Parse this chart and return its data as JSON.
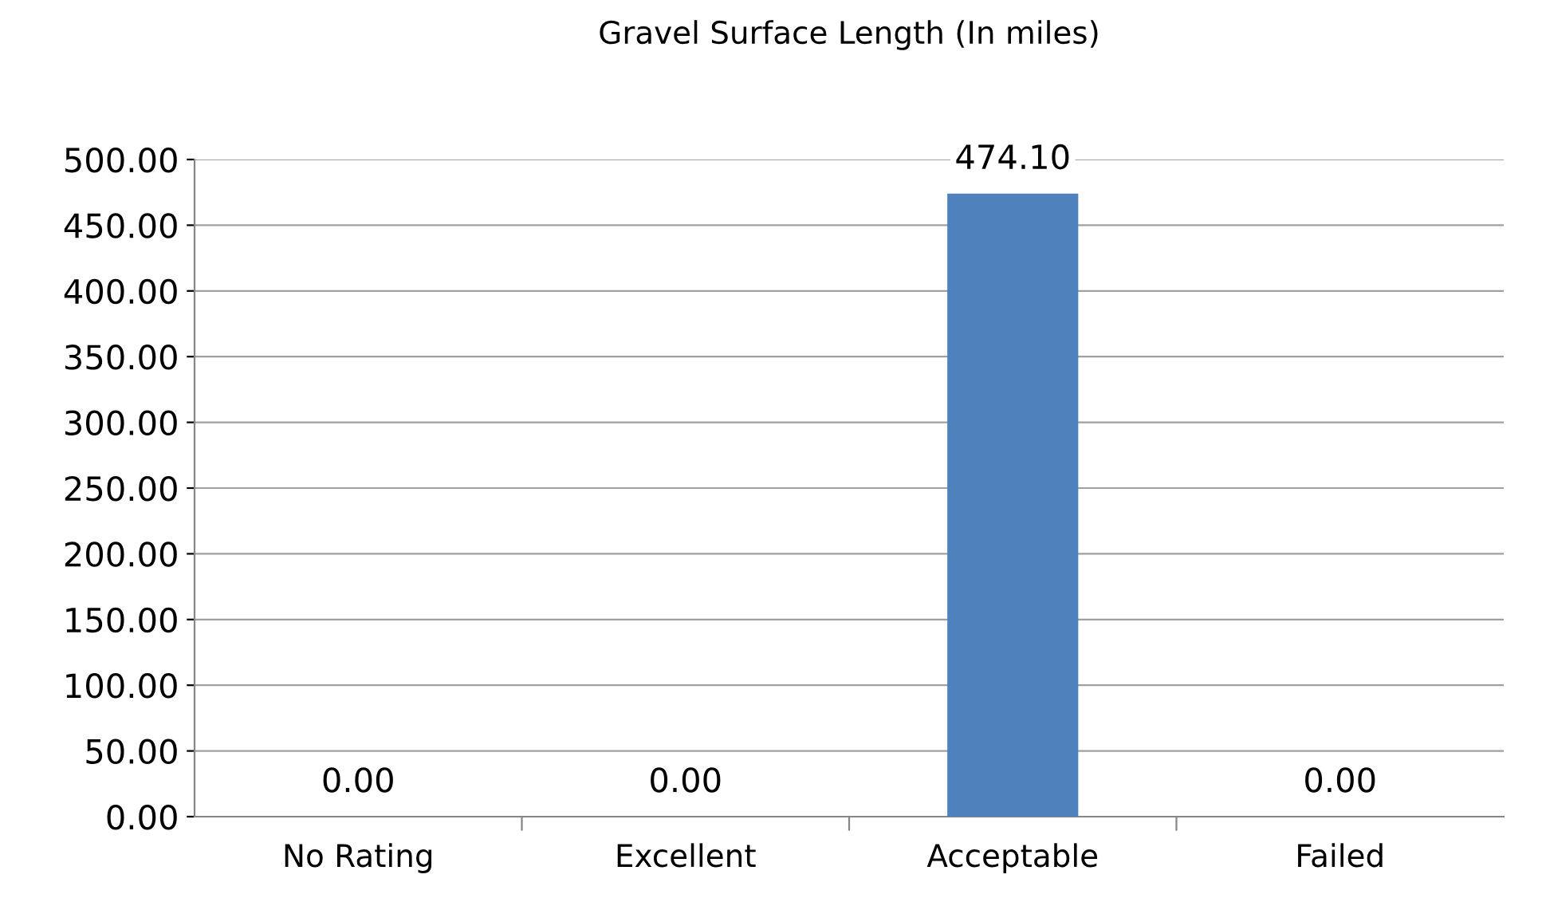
{
  "chart_data": {
    "type": "bar",
    "title": "Gravel Surface Length (In miles)",
    "categories": [
      "No Rating",
      "Excellent",
      "Acceptable",
      "Failed"
    ],
    "values": [
      0,
      0,
      474.1,
      0
    ],
    "color": "#4f81bd",
    "value_labels": [
      "0.00",
      "0.00",
      "474.10",
      "0.00"
    ],
    "ylim": [
      0,
      500
    ],
    "yticks": [
      {
        "value": 0,
        "label": "0.00"
      },
      {
        "value": 50,
        "label": "50.00"
      },
      {
        "value": 100,
        "label": "100.00"
      },
      {
        "value": 150,
        "label": "150.00"
      },
      {
        "value": 200,
        "label": "200.00"
      },
      {
        "value": 250,
        "label": "250.00"
      },
      {
        "value": 300,
        "label": "300.00"
      },
      {
        "value": 350,
        "label": "350.00"
      },
      {
        "value": 400,
        "label": "400.00"
      },
      {
        "value": 450,
        "label": "450.00"
      },
      {
        "value": 500,
        "label": "500.00"
      }
    ],
    "grid": "y",
    "legend": false
  }
}
